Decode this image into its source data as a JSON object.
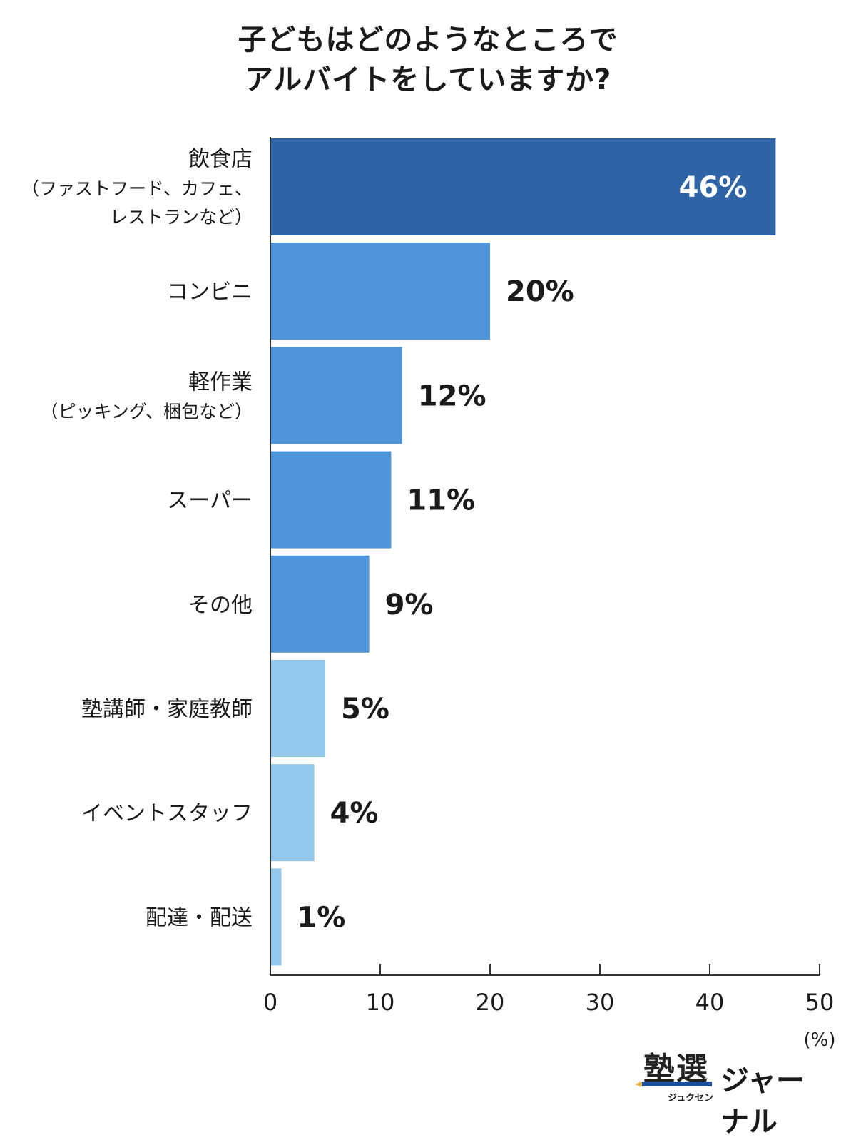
{
  "chart_data": {
    "type": "bar",
    "orientation": "horizontal",
    "title_lines": [
      "子どもはどのようなところで",
      "アルバイトをしていますか?"
    ],
    "categories": [
      {
        "label": "飲食店",
        "sublabel": [
          "（ファストフード、カフェ、",
          "レストランなど）"
        ]
      },
      {
        "label": "コンビニ",
        "sublabel": []
      },
      {
        "label": "軽作業",
        "sublabel": [
          "（ピッキング、梱包など）"
        ]
      },
      {
        "label": "スーパー",
        "sublabel": []
      },
      {
        "label": "その他",
        "sublabel": []
      },
      {
        "label": "塾講師・家庭教師",
        "sublabel": []
      },
      {
        "label": "イベントスタッフ",
        "sublabel": []
      },
      {
        "label": "配達・配送",
        "sublabel": []
      }
    ],
    "values": [
      46,
      20,
      12,
      11,
      9,
      5,
      4,
      1
    ],
    "value_labels": [
      "46%",
      "20%",
      "12%",
      "11%",
      "9%",
      "5%",
      "4%",
      "1%"
    ],
    "bar_colors": [
      "#2e64a6",
      "#4f95da",
      "#4f95da",
      "#4f95da",
      "#4f95da",
      "#93c8ec",
      "#93c8ec",
      "#93c8ec"
    ],
    "value_label_colors": [
      "#ffffff",
      "#1a1a1a",
      "#1a1a1a",
      "#1a1a1a",
      "#1a1a1a",
      "#1a1a1a",
      "#1a1a1a",
      "#1a1a1a"
    ],
    "xlim": [
      0,
      50
    ],
    "xticks": [
      0,
      10,
      20,
      30,
      40,
      50
    ],
    "xunit": "(%)",
    "grid": false,
    "legend": "none"
  },
  "logo": {
    "kanji": "塾選",
    "ruby": "ジュクセン",
    "text": "ジャーナル"
  }
}
